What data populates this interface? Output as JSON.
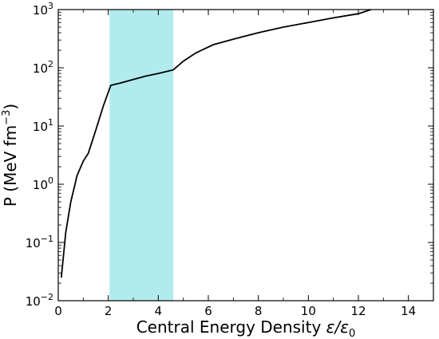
{
  "chart_data": {
    "type": "line",
    "title": "",
    "xlabel": "Central Energy Density ε/ε0",
    "xlabel_parts": {
      "main": "Central Energy Density ",
      "var": "ε/ε",
      "sub": "0"
    },
    "ylabel": "P (MeV fm−3)",
    "ylabel_parts": {
      "main": "P (MeV fm",
      "sup": "−3",
      "close": ")"
    },
    "xlim": [
      0,
      15
    ],
    "ylim": [
      0.01,
      1000
    ],
    "yscale": "log",
    "grid": false,
    "x_ticks": [
      0,
      2,
      4,
      6,
      8,
      10,
      12,
      14
    ],
    "y_ticks": [
      {
        "value": 0.01,
        "base": "10",
        "exp": "−2"
      },
      {
        "value": 0.1,
        "base": "10",
        "exp": "−1"
      },
      {
        "value": 1,
        "base": "10",
        "exp": "0"
      },
      {
        "value": 10,
        "base": "10",
        "exp": "1"
      },
      {
        "value": 100,
        "base": "10",
        "exp": "2"
      },
      {
        "value": 1000,
        "base": "10",
        "exp": "3"
      }
    ],
    "shaded_region": {
      "x_range": [
        2.05,
        4.6
      ],
      "color": "#b2ebed"
    },
    "series": [
      {
        "color": "#000000",
        "x": [
          0.12,
          0.3,
          0.5,
          0.75,
          1.0,
          1.2,
          1.5,
          1.8,
          2.1,
          2.5,
          3.0,
          3.5,
          4.0,
          4.6,
          5.0,
          5.5,
          6.2,
          7.0,
          8.0,
          9.0,
          10.0,
          11.0,
          12.0,
          12.5
        ],
        "y": [
          0.025,
          0.15,
          0.5,
          1.4,
          2.5,
          3.4,
          8.5,
          22,
          50,
          55,
          63,
          72,
          80,
          92,
          130,
          180,
          250,
          310,
          400,
          500,
          600,
          720,
          850,
          1000
        ]
      }
    ]
  }
}
